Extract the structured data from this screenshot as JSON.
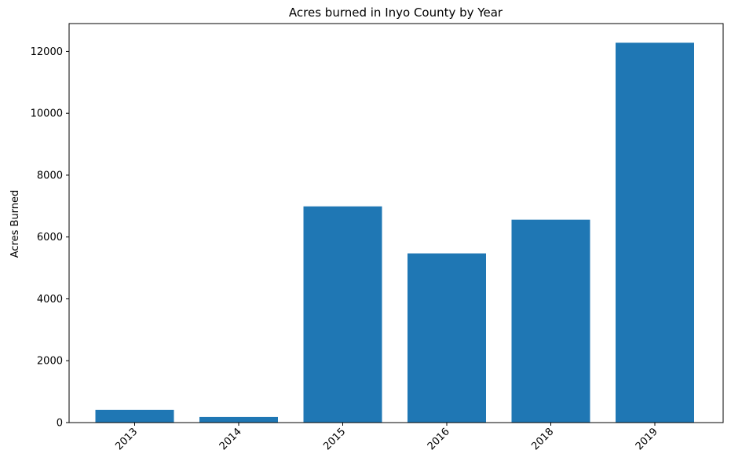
{
  "chart_data": {
    "type": "bar",
    "title": "Acres burned in Inyo County by Year",
    "xlabel": "",
    "ylabel": "Acres Burned",
    "categories": [
      "2013",
      "2014",
      "2015",
      "2016",
      "2018",
      "2019"
    ],
    "values": [
      410,
      180,
      6990,
      5470,
      6560,
      12280
    ],
    "ylim": [
      0,
      12900
    ],
    "yticks": [
      0,
      2000,
      4000,
      6000,
      8000,
      10000,
      12000
    ],
    "x_tick_rotation": "45 degrees",
    "grid": false,
    "legend": "none",
    "bar_color": "#1f77b4"
  }
}
